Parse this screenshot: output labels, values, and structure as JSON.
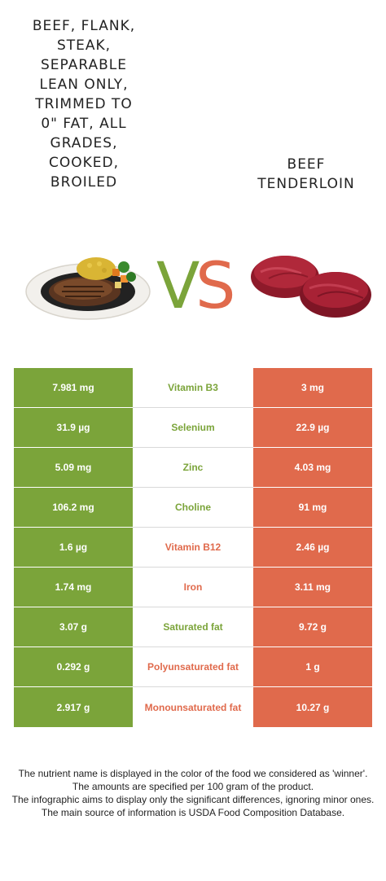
{
  "left_food": {
    "title": "BEEF, FLANK,\nSTEAK,\nSEPARABLE\nLEAN ONLY,\nTRIMMED TO\n0\" FAT, ALL\nGRADES,\nCOOKED,\nBROILED",
    "color": "#7ba43a"
  },
  "right_food": {
    "title": "BEEF\nTENDERLOIN",
    "color": "#e06a4c"
  },
  "vs": {
    "v": "V",
    "s": "S"
  },
  "colors": {
    "winner_left": "#7ba43a",
    "winner_right": "#e06a4c"
  },
  "rows": [
    {
      "left": "7.981 mg",
      "name": "Vitamin B3",
      "right": "3 mg",
      "winner": "left"
    },
    {
      "left": "31.9 µg",
      "name": "Selenium",
      "right": "22.9 µg",
      "winner": "left"
    },
    {
      "left": "5.09 mg",
      "name": "Zinc",
      "right": "4.03 mg",
      "winner": "left"
    },
    {
      "left": "106.2 mg",
      "name": "Choline",
      "right": "91 mg",
      "winner": "left"
    },
    {
      "left": "1.6 µg",
      "name": "Vitamin B12",
      "right": "2.46 µg",
      "winner": "right"
    },
    {
      "left": "1.74 mg",
      "name": "Iron",
      "right": "3.11 mg",
      "winner": "right"
    },
    {
      "left": "3.07 g",
      "name": "Saturated fat",
      "right": "9.72 g",
      "winner": "left"
    },
    {
      "left": "0.292 g",
      "name": "Polyunsaturated fat",
      "right": "1 g",
      "winner": "right"
    },
    {
      "left": "2.917 g",
      "name": "Monounsaturated fat",
      "right": "10.27 g",
      "winner": "right"
    }
  ],
  "footer": {
    "line1": "The nutrient name is displayed in the color of the food we considered as 'winner'.",
    "line2": "The amounts are specified per 100 gram of the product.",
    "line3": "The infographic aims to display only the significant differences, ignoring minor ones.",
    "line4": "The main source of information is USDA Food Composition Database."
  }
}
